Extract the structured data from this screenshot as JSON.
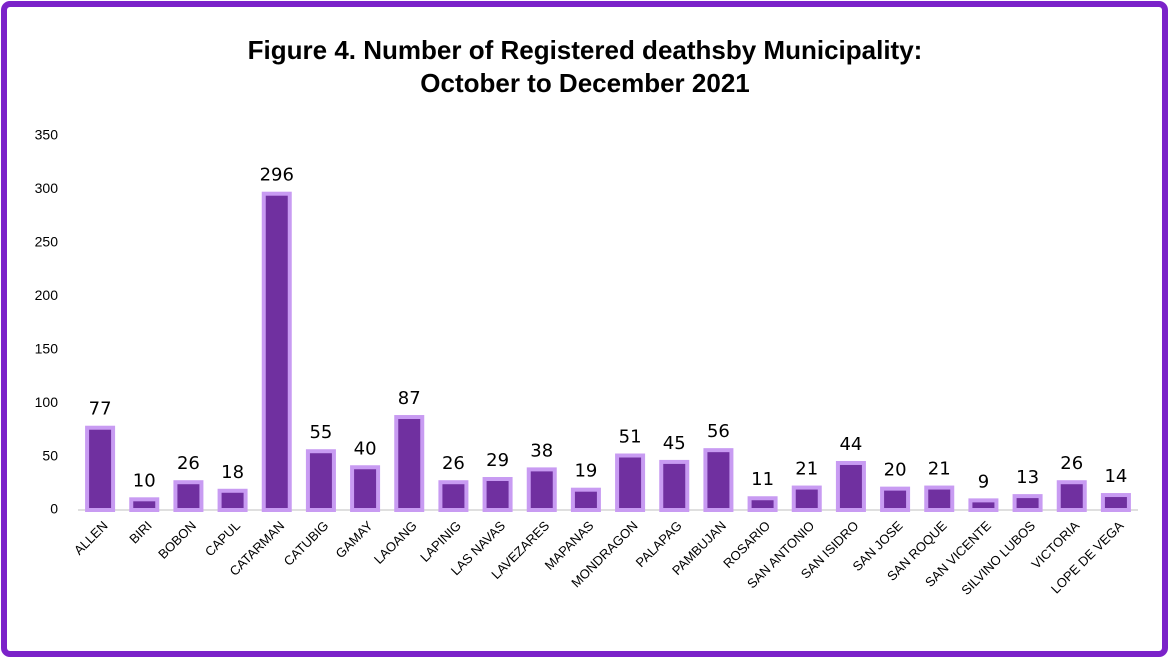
{
  "chart_data": {
    "type": "bar",
    "title": [
      "Figure 4. Number of Registered deathsby Municipality:",
      "October to December 2021"
    ],
    "categories": [
      "ALLEN",
      "BIRI",
      "BOBON",
      "CAPUL",
      "CATARMAN",
      "CATUBIG",
      "GAMAY",
      "LAOANG",
      "LAPINIG",
      "LAS NAVAS",
      "LAVEZARES",
      "MAPANAS",
      "MONDRAGON",
      "PALAPAG",
      "PAMBUJAN",
      "ROSARIO",
      "SAN ANTONIO",
      "SAN ISIDRO",
      "SAN JOSE",
      "SAN ROQUE",
      "SAN VICENTE",
      "SILVINO LUBOS",
      "VICTORIA",
      "LOPE DE VEGA"
    ],
    "values": [
      77,
      10,
      26,
      18,
      296,
      55,
      40,
      87,
      26,
      29,
      38,
      19,
      51,
      45,
      56,
      11,
      21,
      44,
      20,
      21,
      9,
      13,
      26,
      14
    ],
    "color": "#7030a0",
    "edge_color": "#c89bf2",
    "ylim": [
      0,
      350
    ],
    "yticks": [
      0,
      50,
      100,
      150,
      200,
      250,
      300,
      350
    ],
    "grid": false
  }
}
